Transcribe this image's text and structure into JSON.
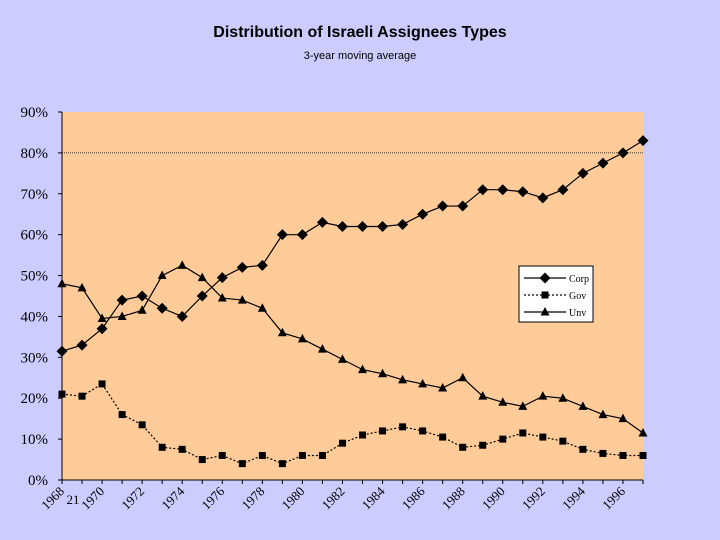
{
  "chart_data": {
    "type": "line",
    "title": "Distribution of Israeli Assignees Types",
    "subtitle": "3-year moving average",
    "xlabel": "",
    "ylabel": "",
    "ylim": [
      0,
      90
    ],
    "yticks": [
      "0%",
      "10%",
      "20%",
      "30%",
      "40%",
      "50%",
      "60%",
      "70%",
      "80%",
      "90%"
    ],
    "xticks": [
      "1968",
      "1970",
      "1972",
      "1974",
      "1976",
      "1978",
      "1980",
      "1982",
      "1984",
      "1986",
      "1988",
      "1990",
      "1992",
      "1994",
      "1996"
    ],
    "stray_label": "21",
    "reference_line": 80,
    "x": [
      1968,
      1969,
      1970,
      1971,
      1972,
      1973,
      1974,
      1975,
      1976,
      1977,
      1978,
      1979,
      1980,
      1981,
      1982,
      1983,
      1984,
      1985,
      1986,
      1987,
      1988,
      1989,
      1990,
      1991,
      1992,
      1993,
      1994,
      1995,
      1996,
      1997
    ],
    "series": [
      {
        "name": "Corp",
        "marker": "diamond",
        "dash": "solid",
        "values": [
          31.5,
          33,
          37,
          44,
          45,
          42,
          40,
          45,
          49.5,
          52,
          52.5,
          60,
          60,
          63,
          62,
          62,
          62,
          62.5,
          65,
          67,
          67,
          71,
          71,
          70.5,
          69,
          71,
          75,
          77.5,
          80,
          83
        ]
      },
      {
        "name": "Gov",
        "marker": "square",
        "dash": "dotted",
        "values": [
          21,
          20.5,
          23.5,
          16,
          13.5,
          8,
          7.5,
          5,
          6,
          4,
          6,
          4,
          6,
          6,
          9,
          11,
          12,
          13,
          12,
          10.5,
          8,
          8.5,
          10,
          11.5,
          10.5,
          9.5,
          7.5,
          6.5,
          6,
          6
        ]
      },
      {
        "name": "Unv",
        "marker": "triangle",
        "dash": "solid",
        "values": [
          48,
          47,
          39.5,
          40,
          41.5,
          50,
          52.5,
          49.5,
          44.5,
          44,
          42,
          36,
          34.5,
          32,
          29.5,
          27,
          26,
          24.5,
          23.5,
          22.5,
          25,
          20.5,
          19,
          18,
          20.5,
          20,
          18,
          16,
          15,
          11.5
        ]
      }
    ],
    "legend": [
      "Corp",
      "Gov",
      "Unv"
    ],
    "legend_position": "right",
    "colors": {
      "background": "#ccccff",
      "plot": "#ffcc99",
      "line": "#000000"
    }
  }
}
